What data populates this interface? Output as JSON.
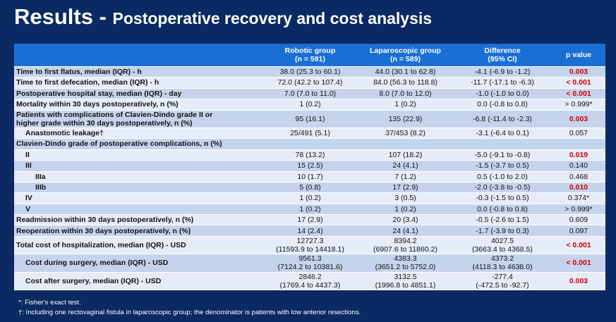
{
  "title": {
    "main": "Results - ",
    "sub": "Postoperative recovery and cost analysis"
  },
  "header": {
    "blank": "",
    "robotic": "Robotic group",
    "robotic_n": "(n = 591)",
    "lap": "Laparoscopic group",
    "lap_n": "(n = 589)",
    "diff": "Difference",
    "diff_ci": "(95%  CI)",
    "p": "p value"
  },
  "rows": [
    {
      "label": "Time to first flatus, median (IQR) - h",
      "rob": "38.0 (25.3 to 60.1)",
      "lap": "44.0 (30.1 to 62.8)",
      "diff": "-4.1 (-6.9 to -1.2)",
      "p": "0.003"
    },
    {
      "label": "Time to first defecation, median (IQR) - h",
      "rob": "72.0 (42.2 to 107.4)",
      "lap": "84.0 (56.3 to 118.8)",
      "diff": "-11.7 (-17.1 to -6.3)",
      "p": "< 0.001"
    },
    {
      "label": "Postoperative hospital stay, median (IQR) - day",
      "rob": "7.0 (7.0 to 11.0)",
      "lap": "8.0 (7.0 to 12.0)",
      "diff": "-1.0 (-1.0 to 0.0)",
      "p": "< 0.001"
    },
    {
      "label": "Mortality within 30 days postoperatively, n (%)",
      "rob": "1 (0.2)",
      "lap": "1 (0.2)",
      "diff": "0.0 (-0.8 to 0.8)",
      "p": "> 0.999*"
    },
    {
      "label1": "Patients with complications of Clavien-Dindo grade II or",
      "label2": "higher grade within 30 days postoperatively, n (%)",
      "rob": "95 (16.1)",
      "lap": "135 (22.9)",
      "diff": "-6.8 (-11.4 to -2.3)",
      "p": "0.003"
    },
    {
      "label": "Anastomotic leakage†",
      "rob": "25/491 (5.1)",
      "lap": "37/453 (8.2)",
      "diff": "-3.1 (-6.4 to 0.1)",
      "p": "0.057"
    },
    {
      "label": "Clavien-Dindo grade of postoperative complications, n (%)"
    },
    {
      "label": "II",
      "rob": "78 (13.2)",
      "lap": "107 (18.2)",
      "diff": "-5.0 (-9.1 to -0.8)",
      "p": "0.019"
    },
    {
      "label": "III",
      "rob": "15 (2.5)",
      "lap": "24 (4.1)",
      "diff": "-1.5 (-3.7 to 0.5)",
      "p": "0.140"
    },
    {
      "label": "IIIa",
      "rob": "10 (1.7)",
      "lap": "7 (1.2)",
      "diff": "0.5 (-1.0 to 2.0)",
      "p": "0.468"
    },
    {
      "label": "IIIb",
      "rob": "5 (0.8)",
      "lap": "17 (2.9)",
      "diff": "-2.0 (-3.8 to -0.5)",
      "p": "0.010"
    },
    {
      "label": "IV",
      "rob": "1 (0.2)",
      "lap": "3 (0.5)",
      "diff": "-0.3 (-1.5 to 0.5)",
      "p": "0.374*"
    },
    {
      "label": "V",
      "rob": "1 (0.2)",
      "lap": "1 (0.2)",
      "diff": "0.0 (-0.8 to 0.8)",
      "p": "> 0.999*"
    },
    {
      "label": "Readmission within 30 days postoperatively, n (%)",
      "rob": "17 (2.9)",
      "lap": "20 (3.4)",
      "diff": "-0.5 (-2.6 to 1.5)",
      "p": "0.609"
    },
    {
      "label": "Reoperation within 30 days postoperatively, n (%)",
      "rob": "14 (2.4)",
      "lap": "24 (4.1)",
      "diff": "-1.7 (-3.9 to 0.3)",
      "p": "0.097"
    },
    {
      "label": "Total cost of hospitalization, median (IQR) - USD",
      "rob1": "12727.3",
      "rob2": "(11593.9 to 14418.1)",
      "lap1": "8394.2",
      "lap2": "(6907.6 to 11860.2)",
      "diff1": "4027.5",
      "diff2": "(3663.4 to 4368.5)",
      "p": "< 0.001"
    },
    {
      "label": "Cost during surgery, median (IQR) - USD",
      "rob1": "9561.3",
      "rob2": "(7124.2 to 10381.6)",
      "lap1": "4383.3",
      "lap2": "(3651.2 to 5752.0)",
      "diff1": "4373.2",
      "diff2": "(4118.3 to 4638.0)",
      "p": "< 0.001"
    },
    {
      "label": "Cost after surgery, median (IQR) - USD",
      "rob1": "2846.2",
      "rob2": "(1769.4 to 4437.3)",
      "lap1": "3132.5",
      "lap2": "(1996.8 to 4851.1)",
      "diff1": "-277.4",
      "diff2": "(-472.5 to -92.7)",
      "p": "0.003"
    }
  ],
  "footnotes": {
    "f1": "*: Fisher's exact test.",
    "f2": "†: Including  one rectovaginal fistula in laparoscopic group;  the denominator is patients with low anterior resections."
  },
  "colors": {
    "background": "#0b2a63",
    "header": "#1a6fd4",
    "row_dark": "#c6d3ec",
    "row_light": "#e6ecf7",
    "significant": "#cc0000"
  }
}
